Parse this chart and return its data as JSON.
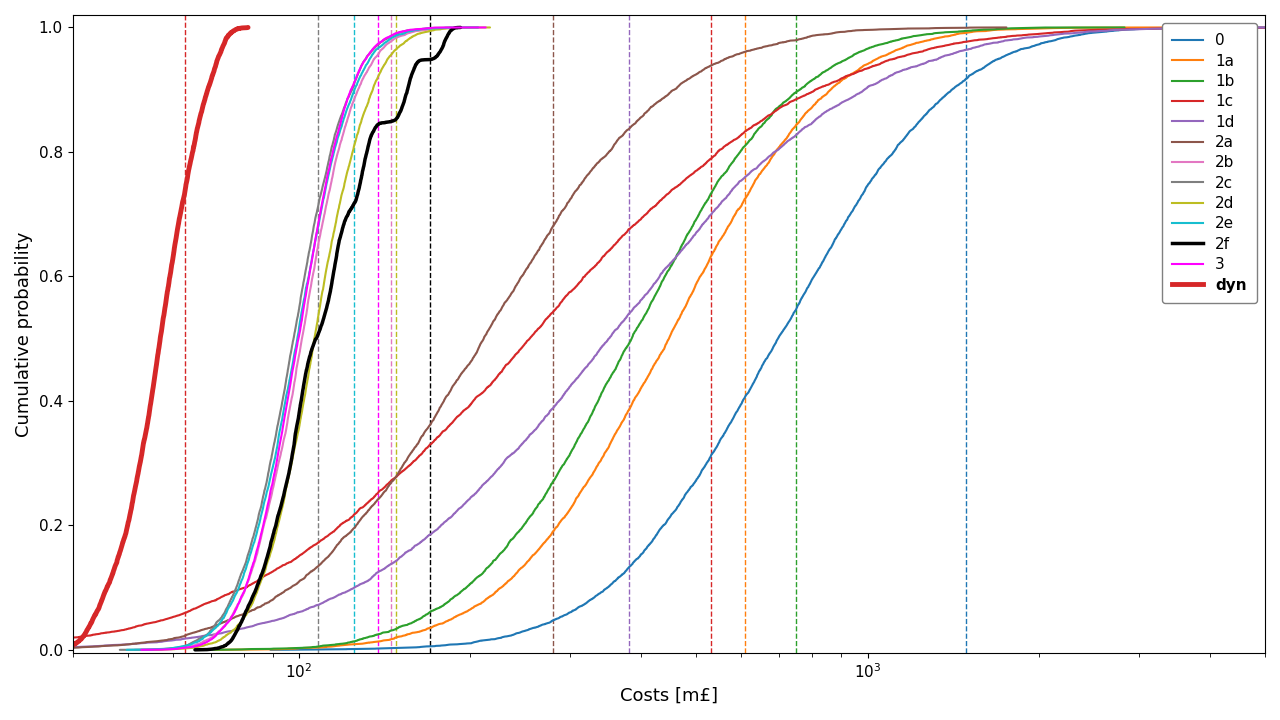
{
  "series_order": [
    "0",
    "1a",
    "1b",
    "1c",
    "1d",
    "2a",
    "2b",
    "2c",
    "2d",
    "2e",
    "2f",
    "3",
    "dyn"
  ],
  "legend_order": [
    "0",
    "1a",
    "1b",
    "1c",
    "1d",
    "2a",
    "2b",
    "2c",
    "2d",
    "2e",
    "2f",
    "3",
    "dyn"
  ],
  "series": {
    "0": {
      "color": "#1f77b4",
      "lw": 1.5,
      "mu": 6.55,
      "sigma": 0.55
    },
    "1a": {
      "color": "#ff7f0e",
      "lw": 1.5,
      "mu": 6.1,
      "sigma": 0.52
    },
    "1b": {
      "color": "#2ca02c",
      "lw": 1.5,
      "mu": 5.95,
      "sigma": 0.52
    },
    "1c": {
      "color": "#d62728",
      "lw": 1.5,
      "mu": 5.55,
      "sigma": 0.9
    },
    "1d": {
      "color": "#9467bd",
      "lw": 1.5,
      "mu": 5.85,
      "sigma": 0.8
    },
    "2a": {
      "color": "#8c564b",
      "lw": 1.5,
      "mu": 5.35,
      "sigma": 0.6
    },
    "2b": {
      "color": "#e377c2",
      "lw": 1.5,
      "mu": 4.62,
      "sigma": 0.18
    },
    "2c": {
      "color": "#7f7f7f",
      "lw": 1.5,
      "mu": 4.58,
      "sigma": 0.18
    },
    "2d": {
      "color": "#bcbd22",
      "lw": 1.5,
      "mu": 4.67,
      "sigma": 0.18
    },
    "2e": {
      "color": "#17becf",
      "lw": 1.5,
      "mu": 4.6,
      "sigma": 0.18
    },
    "2f": {
      "color": "#000000",
      "lw": 2.5,
      "mu": 4.72,
      "sigma": 0.22
    },
    "3": {
      "color": "#ff00ff",
      "lw": 1.5,
      "mu": 4.6,
      "sigma": 0.17
    },
    "dyn": {
      "color": "#d62728",
      "lw": 3.5,
      "mu": 4.05,
      "sigma": 0.2
    }
  },
  "vlines": {
    "0": {
      "color": "#1f77b4",
      "x": 1490
    },
    "1a": {
      "color": "#ff7f0e",
      "x": 610
    },
    "1b": {
      "color": "#2ca02c",
      "x": 750
    },
    "1c": {
      "color": "#d62728",
      "x": 530
    },
    "1d": {
      "color": "#9467bd",
      "x": 380
    },
    "2a": {
      "color": "#8c564b",
      "x": 280
    },
    "2b": {
      "color": "#e377c2",
      "x": 145
    },
    "2c": {
      "color": "#7f7f7f",
      "x": 108
    },
    "2d": {
      "color": "#bcbd22",
      "x": 148
    },
    "2e": {
      "color": "#17becf",
      "x": 125
    },
    "2f": {
      "color": "#000000",
      "x": 170
    },
    "3": {
      "color": "#ff00ff",
      "x": 138
    },
    "dyn": {
      "color": "#d62728",
      "x": 63
    }
  },
  "xlabel": "Costs [m£]",
  "ylabel": "Cumulative probability",
  "xlim_lo": 40,
  "xlim_hi": 5000,
  "ylim_lo": -0.005,
  "ylim_hi": 1.02,
  "n_samples": 8000,
  "legend_fontsize": 11
}
